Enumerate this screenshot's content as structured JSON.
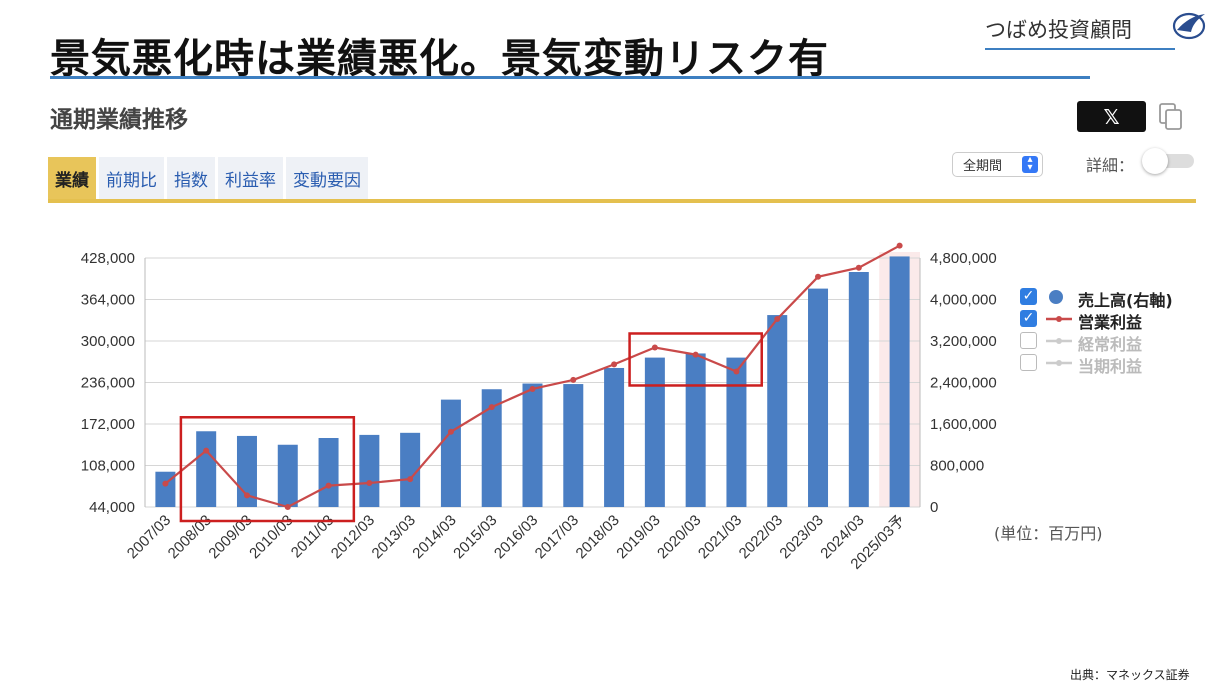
{
  "slide": {
    "title": "景気悪化時は業績悪化。景気変動リスク有",
    "brand": "つばめ投資顧問",
    "source": "出典：マネックス証券"
  },
  "section": {
    "title": "通期業績推移",
    "share_label": "𝕏",
    "tabs": [
      {
        "label": "業績",
        "active": true
      },
      {
        "label": "前期比",
        "active": false
      },
      {
        "label": "指数",
        "active": false
      },
      {
        "label": "利益率",
        "active": false
      },
      {
        "label": "変動要因",
        "active": false
      }
    ],
    "period_select": "全期間",
    "detail_label": "詳細：",
    "unit": "(単位：百万円)"
  },
  "colors": {
    "bar": "#4a7ec3",
    "line": "#c94a4a",
    "highlight_box": "#cc1f1f",
    "tab_accent": "#e4c04f"
  },
  "legend": [
    {
      "label": "売上高(右軸)",
      "checked": true,
      "symbol": "dot",
      "color": "#4a7ec3"
    },
    {
      "label": "営業利益",
      "checked": true,
      "symbol": "line",
      "color": "#c94a4a"
    },
    {
      "label": "経常利益",
      "checked": false,
      "symbol": "line",
      "color": "#cccccc"
    },
    {
      "label": "当期利益",
      "checked": false,
      "symbol": "line",
      "color": "#cccccc"
    }
  ],
  "chart_data": {
    "type": "bar",
    "categories": [
      "2007/03",
      "2008/03",
      "2009/03",
      "2010/03",
      "2011/03",
      "2012/03",
      "2013/03",
      "2014/03",
      "2015/03",
      "2016/03",
      "2017/03",
      "2018/03",
      "2019/03",
      "2020/03",
      "2021/03",
      "2022/03",
      "2023/03",
      "2024/03",
      "2025/03予"
    ],
    "series": [
      {
        "name": "売上高(右軸)",
        "type": "bar",
        "axis": "right",
        "values": [
          680000,
          1460000,
          1370000,
          1200000,
          1330000,
          1390000,
          1430000,
          2070000,
          2270000,
          2380000,
          2370000,
          2680000,
          2880000,
          2960000,
          2880000,
          3700000,
          4210000,
          4530000,
          4830000
        ]
      },
      {
        "name": "営業利益",
        "type": "line",
        "axis": "left",
        "values": [
          80000,
          131000,
          62000,
          44000,
          77000,
          81000,
          87000,
          160000,
          198000,
          226000,
          240000,
          264000,
          290000,
          279000,
          253000,
          334000,
          399000,
          413000,
          447000
        ]
      }
    ],
    "left_axis": {
      "ticks": [
        "44,000",
        "108,000",
        "172,000",
        "236,000",
        "300,000",
        "364,000",
        "428,000"
      ],
      "min": 44000,
      "max": 428000
    },
    "right_axis": {
      "ticks": [
        "0",
        "800,000",
        "1,600,000",
        "2,400,000",
        "3,200,000",
        "4,000,000",
        "4,800,000"
      ],
      "min": 0,
      "max": 4800000
    },
    "grid": true,
    "legend_position": "right",
    "forecast_category": "2025/03予",
    "highlight_groups": [
      [
        "2008/03",
        "2011/03"
      ],
      [
        "2019/03",
        "2021/03"
      ]
    ]
  }
}
